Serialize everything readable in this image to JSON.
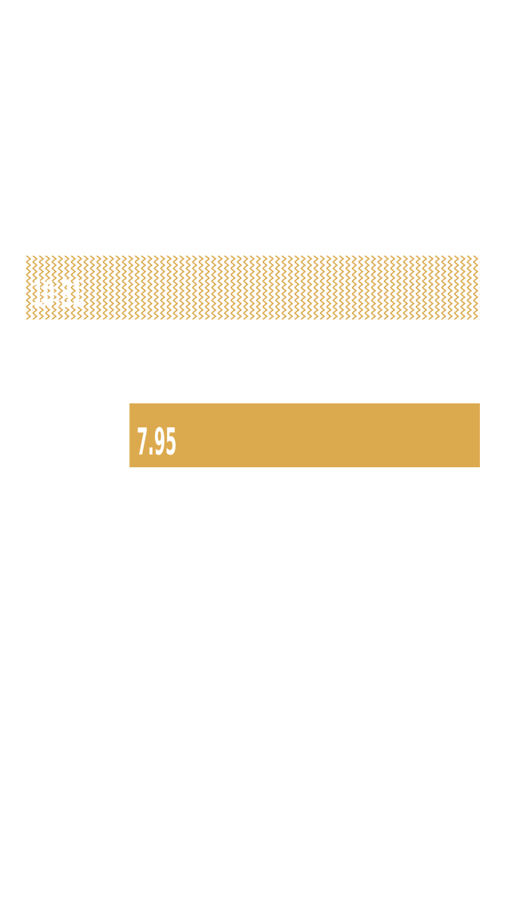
{
  "colors": {
    "bar": "#dcaa4e",
    "text": "#ffffff",
    "background": "#ffffff"
  },
  "chart_data": {
    "type": "bar",
    "orientation": "horizontal",
    "categories": [
      "",
      ""
    ],
    "series": [
      {
        "values": [
          10.31,
          7.95
        ],
        "labels": [
          "10.31",
          "7.95"
        ],
        "fills": [
          "chevron-pattern",
          "solid"
        ]
      }
    ],
    "title": "",
    "xlabel": "",
    "ylabel": "",
    "grid": false,
    "legend": "none"
  }
}
